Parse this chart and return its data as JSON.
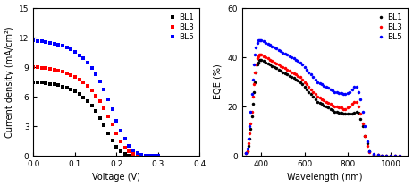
{
  "jv": {
    "BL1": {
      "color": "black",
      "v": [
        0.0,
        0.01,
        0.02,
        0.03,
        0.04,
        0.05,
        0.06,
        0.07,
        0.08,
        0.09,
        0.1,
        0.11,
        0.12,
        0.13,
        0.14,
        0.15,
        0.16,
        0.17,
        0.18,
        0.19,
        0.2,
        0.21,
        0.22,
        0.23,
        0.24,
        0.25,
        0.26
      ],
      "j": [
        7.5,
        7.47,
        7.43,
        7.38,
        7.32,
        7.24,
        7.15,
        7.04,
        6.9,
        6.73,
        6.52,
        6.26,
        5.95,
        5.57,
        5.1,
        4.53,
        3.86,
        3.1,
        2.3,
        1.55,
        0.9,
        0.45,
        0.15,
        0.04,
        0.01,
        0.0,
        0.0
      ]
    },
    "BL3": {
      "color": "red",
      "v": [
        0.0,
        0.01,
        0.02,
        0.03,
        0.04,
        0.05,
        0.06,
        0.07,
        0.08,
        0.09,
        0.1,
        0.11,
        0.12,
        0.13,
        0.14,
        0.15,
        0.16,
        0.17,
        0.18,
        0.19,
        0.2,
        0.21,
        0.22,
        0.23,
        0.24,
        0.25,
        0.26,
        0.27,
        0.28,
        0.29
      ],
      "j": [
        9.0,
        8.97,
        8.93,
        8.88,
        8.82,
        8.74,
        8.64,
        8.52,
        8.37,
        8.19,
        7.98,
        7.72,
        7.42,
        7.06,
        6.63,
        6.12,
        5.52,
        4.82,
        4.02,
        3.14,
        2.24,
        1.48,
        0.85,
        0.43,
        0.18,
        0.06,
        0.02,
        0.01,
        0.0,
        0.0
      ]
    },
    "BL5": {
      "color": "blue",
      "v": [
        0.0,
        0.01,
        0.02,
        0.03,
        0.04,
        0.05,
        0.06,
        0.07,
        0.08,
        0.09,
        0.1,
        0.11,
        0.12,
        0.13,
        0.14,
        0.15,
        0.16,
        0.17,
        0.18,
        0.19,
        0.2,
        0.21,
        0.22,
        0.23,
        0.24,
        0.25,
        0.26,
        0.27,
        0.28,
        0.29,
        0.3
      ],
      "j": [
        11.7,
        11.67,
        11.63,
        11.57,
        11.5,
        11.41,
        11.3,
        11.16,
        10.99,
        10.78,
        10.53,
        10.23,
        9.87,
        9.44,
        8.93,
        8.32,
        7.59,
        6.74,
        5.76,
        4.69,
        3.58,
        2.56,
        1.7,
        1.02,
        0.55,
        0.26,
        0.1,
        0.03,
        0.01,
        0.0,
        0.0
      ]
    }
  },
  "eqe": {
    "BL1": {
      "color": "black",
      "wl": [
        330,
        335,
        340,
        345,
        350,
        355,
        360,
        365,
        370,
        375,
        380,
        385,
        390,
        395,
        400,
        410,
        420,
        430,
        440,
        450,
        460,
        470,
        480,
        490,
        500,
        510,
        520,
        530,
        540,
        550,
        560,
        570,
        580,
        590,
        600,
        610,
        620,
        630,
        640,
        650,
        660,
        670,
        680,
        690,
        700,
        710,
        720,
        730,
        740,
        750,
        760,
        770,
        780,
        790,
        800,
        810,
        820,
        830,
        840,
        850,
        860,
        870,
        880,
        890,
        900,
        920,
        940,
        960,
        980,
        1000,
        1020,
        1040
      ],
      "eqe": [
        1,
        2,
        4,
        7,
        11,
        16,
        21,
        26,
        30,
        34,
        37,
        38,
        39,
        39,
        39,
        38.5,
        38,
        37.5,
        37,
        36.5,
        36,
        35.5,
        35,
        34.5,
        34,
        33.5,
        33,
        32.5,
        32,
        31.5,
        31,
        30.5,
        30,
        29,
        28,
        27,
        26,
        25,
        24,
        23,
        22,
        21.5,
        21,
        20.5,
        20,
        19.5,
        19,
        18.5,
        18,
        18,
        17.5,
        17.5,
        17,
        17,
        17,
        17,
        17,
        17.5,
        18,
        17.5,
        15,
        12,
        8,
        5,
        2,
        0.5,
        0.2,
        0.1,
        0.05,
        0.02,
        0,
        0
      ]
    },
    "BL3": {
      "color": "red",
      "wl": [
        330,
        335,
        340,
        345,
        350,
        355,
        360,
        365,
        370,
        375,
        380,
        385,
        390,
        395,
        400,
        410,
        420,
        430,
        440,
        450,
        460,
        470,
        480,
        490,
        500,
        510,
        520,
        530,
        540,
        550,
        560,
        570,
        580,
        590,
        600,
        610,
        620,
        630,
        640,
        650,
        660,
        670,
        680,
        690,
        700,
        710,
        720,
        730,
        740,
        750,
        760,
        770,
        780,
        790,
        800,
        810,
        820,
        830,
        840,
        850,
        860,
        870,
        880,
        890,
        900,
        920,
        940,
        960,
        980,
        1000,
        1020,
        1040
      ],
      "eqe": [
        1,
        2,
        5,
        9,
        13,
        18,
        24,
        29,
        34,
        37,
        39.5,
        40.5,
        41,
        41,
        41,
        40.5,
        40,
        39.5,
        39,
        38.5,
        38,
        37.5,
        37,
        36.5,
        36,
        35.5,
        35,
        34.5,
        34,
        33.5,
        33,
        32.5,
        32,
        31,
        30,
        29,
        28,
        27,
        26,
        25,
        24,
        23.5,
        23,
        22.5,
        22,
        21.5,
        21,
        20.5,
        20,
        20,
        19.5,
        19.5,
        19,
        19,
        19.5,
        20,
        21,
        22,
        22,
        20,
        17,
        13,
        8,
        4,
        1.5,
        0.5,
        0.2,
        0.1,
        0.05,
        0.02,
        0,
        0
      ]
    },
    "BL5": {
      "color": "blue",
      "wl": [
        330,
        335,
        340,
        345,
        350,
        355,
        360,
        365,
        370,
        375,
        380,
        385,
        390,
        395,
        400,
        410,
        420,
        430,
        440,
        450,
        460,
        470,
        480,
        490,
        500,
        510,
        520,
        530,
        540,
        550,
        560,
        570,
        580,
        590,
        600,
        610,
        620,
        630,
        640,
        650,
        660,
        670,
        680,
        690,
        700,
        710,
        720,
        730,
        740,
        750,
        760,
        770,
        780,
        790,
        800,
        810,
        820,
        830,
        840,
        850,
        860,
        870,
        880,
        890,
        900,
        920,
        940,
        960,
        980,
        1000,
        1020,
        1040
      ],
      "eqe": [
        1,
        3,
        7,
        12,
        18,
        25,
        31,
        37,
        41,
        44,
        46,
        47,
        47,
        47,
        47,
        46.5,
        46,
        45.5,
        45,
        44.5,
        44,
        43.5,
        43,
        42.5,
        42,
        41.5,
        41,
        40.5,
        40,
        39.5,
        39,
        38.5,
        38,
        37,
        36,
        35,
        34,
        33,
        32,
        31,
        30,
        29.5,
        29,
        28.5,
        28,
        27.5,
        27,
        26.5,
        26,
        26,
        25.5,
        25.5,
        25,
        25,
        25.5,
        26,
        27,
        28,
        28,
        26,
        23,
        18,
        12,
        6,
        2,
        0.8,
        0.3,
        0.1,
        0.05,
        0.02,
        0,
        0
      ]
    }
  },
  "jv_xlim": [
    0.0,
    0.4
  ],
  "jv_ylim": [
    0,
    15
  ],
  "jv_xticks": [
    0.0,
    0.1,
    0.2,
    0.3,
    0.4
  ],
  "jv_yticks": [
    0,
    3,
    6,
    9,
    12,
    15
  ],
  "jv_xlabel": "Voltage (V)",
  "jv_ylabel": "Current density (mA/cm²)",
  "eqe_xlim": [
    310,
    1080
  ],
  "eqe_ylim": [
    0,
    60
  ],
  "eqe_xticks": [
    400,
    600,
    800,
    1000
  ],
  "eqe_yticks": [
    0,
    20,
    40,
    60
  ],
  "eqe_xlabel": "Wavelength (nm)",
  "eqe_ylabel": "EQE (%)",
  "labels": [
    "BL1",
    "BL3",
    "BL5"
  ],
  "colors": [
    "black",
    "red",
    "blue"
  ],
  "bg_color": "white",
  "jv_marker_size": 2.8,
  "eqe_marker_size": 2.5
}
